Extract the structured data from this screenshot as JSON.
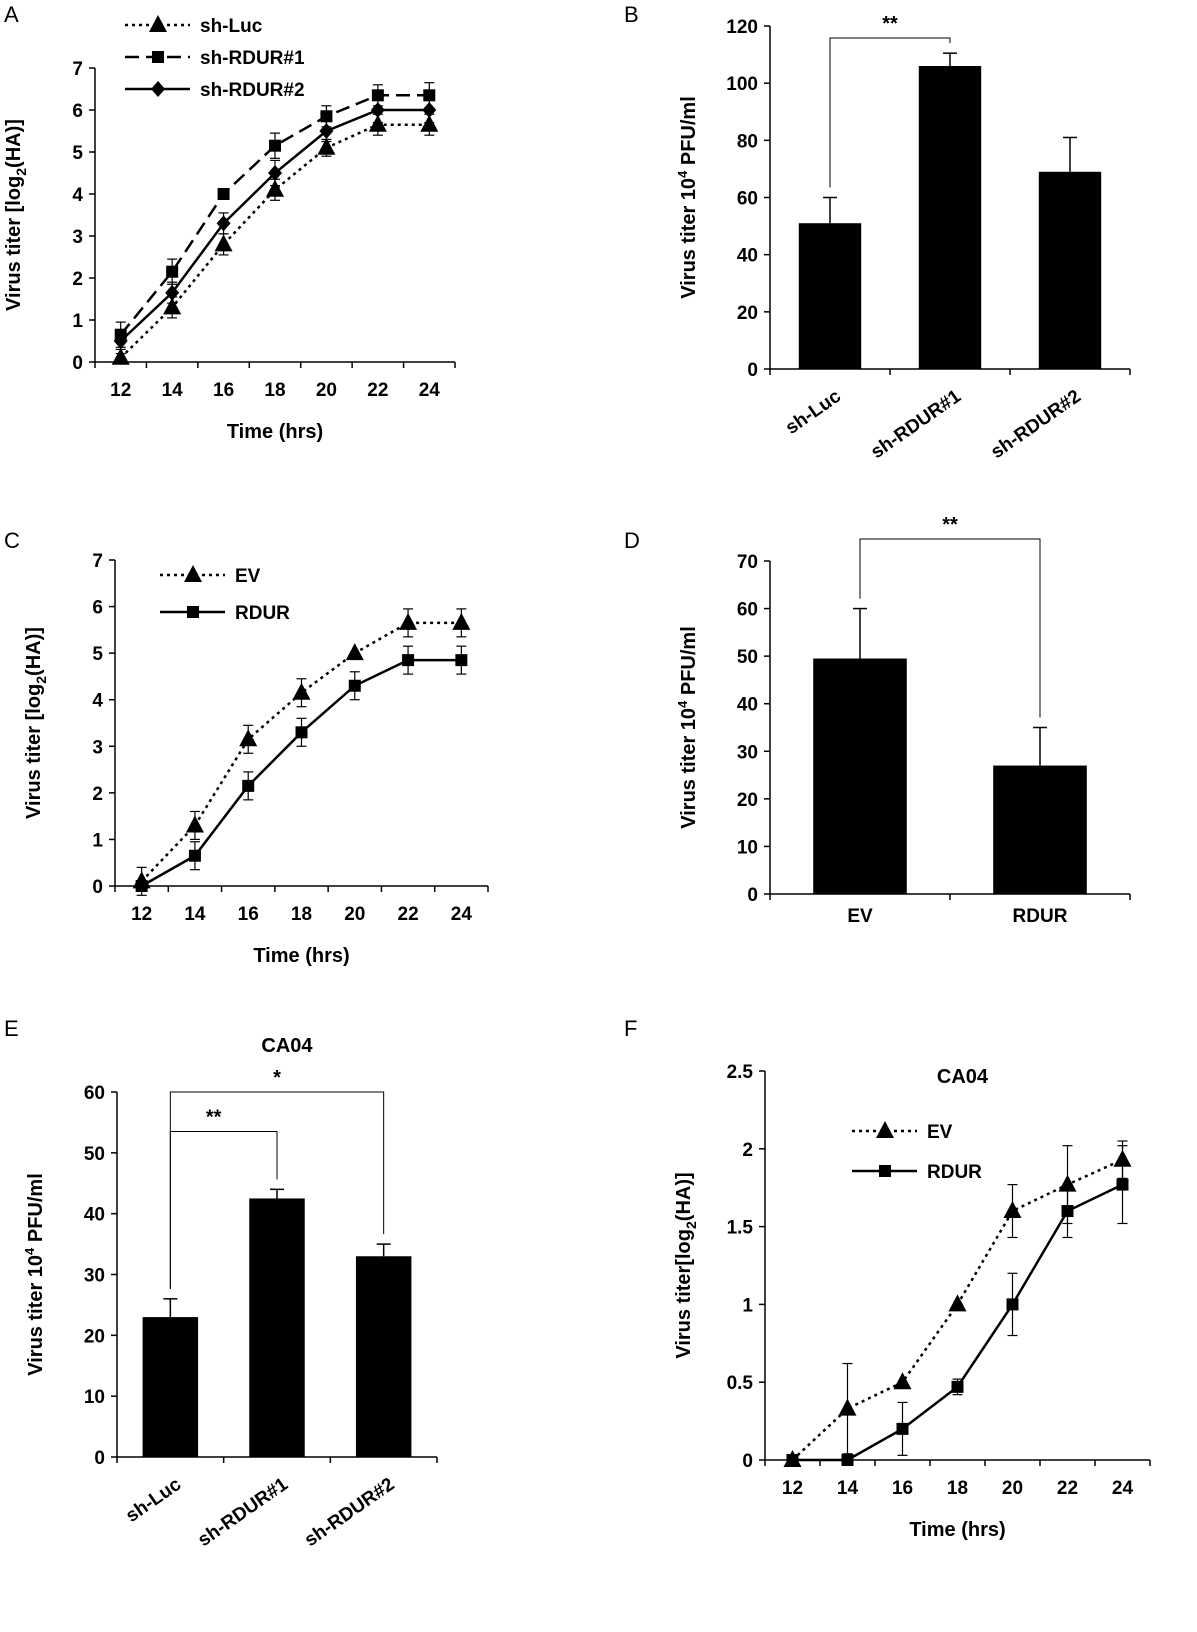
{
  "chart_data": [
    {
      "id": "A",
      "panel": "A",
      "type": "line",
      "title": "",
      "xlabel": "Time (hrs)",
      "ylabel": "Virus titer [log2(HA)]",
      "x": [
        12,
        14,
        16,
        18,
        20,
        22,
        24
      ],
      "xticks": [
        "12",
        "14",
        "16",
        "18",
        "20",
        "22",
        "24"
      ],
      "ylim": [
        0,
        7
      ],
      "yticks": [
        "0",
        "1",
        "2",
        "3",
        "4",
        "5",
        "6",
        "7"
      ],
      "legend_position": "top-left",
      "series": [
        {
          "name": "sh-Luc",
          "marker": "triangle",
          "dash": "dotted",
          "values": [
            0.1,
            1.3,
            2.8,
            4.1,
            5.1,
            5.65,
            5.65
          ],
          "errors": [
            0.1,
            0.25,
            0.25,
            0.25,
            0.2,
            0.25,
            0.25
          ]
        },
        {
          "name": "sh-RDUR#1",
          "marker": "square",
          "dash": "dashed",
          "values": [
            0.65,
            2.15,
            4.0,
            5.15,
            5.85,
            6.35,
            6.35
          ],
          "errors": [
            0.3,
            0.3,
            0.0,
            0.3,
            0.25,
            0.25,
            0.3
          ]
        },
        {
          "name": "sh-RDUR#2",
          "marker": "diamond",
          "dash": "solid",
          "values": [
            0.5,
            1.65,
            3.3,
            4.5,
            5.5,
            6.0,
            6.0
          ],
          "errors": [
            0.2,
            0.25,
            0.25,
            0.3,
            0.25,
            0.3,
            0.3
          ]
        }
      ]
    },
    {
      "id": "B",
      "panel": "B",
      "type": "bar",
      "title": "",
      "xlabel": "",
      "ylabel": "Virus titer 10^4 PFU/ml",
      "ylabel_main": "Virus titer 10",
      "ylabel_sup": "4",
      "ylabel_tail": " PFU/ml",
      "categories": [
        "sh-Luc",
        "sh-RDUR#1",
        "sh-RDUR#2"
      ],
      "values": [
        51,
        106,
        69
      ],
      "errors": [
        9,
        4.5,
        12
      ],
      "ylim": [
        0,
        120
      ],
      "yticks": [
        "0",
        "20",
        "40",
        "60",
        "80",
        "100",
        "120"
      ],
      "rotate_labels": true,
      "significance": [
        {
          "from": 0,
          "to": 1,
          "label": "**"
        }
      ]
    },
    {
      "id": "C",
      "panel": "C",
      "type": "line",
      "title": "",
      "xlabel": "Time (hrs)",
      "ylabel": "Virus titer [log2(HA)]",
      "x": [
        12,
        14,
        16,
        18,
        20,
        22,
        24
      ],
      "xticks": [
        "12",
        "14",
        "16",
        "18",
        "20",
        "22",
        "24"
      ],
      "ylim": [
        0,
        7
      ],
      "yticks": [
        "0",
        "1",
        "2",
        "3",
        "4",
        "5",
        "6",
        "7"
      ],
      "legend_position": "top-left",
      "series": [
        {
          "name": "EV",
          "marker": "triangle",
          "dash": "dotted",
          "values": [
            0.1,
            1.3,
            3.15,
            4.15,
            5.0,
            5.65,
            5.65
          ],
          "errors": [
            0.3,
            0.3,
            0.3,
            0.3,
            0.0,
            0.3,
            0.3
          ]
        },
        {
          "name": "RDUR",
          "marker": "square",
          "dash": "solid",
          "values": [
            0.0,
            0.65,
            2.15,
            3.3,
            4.3,
            4.85,
            4.85
          ],
          "errors": [
            0.0,
            0.3,
            0.3,
            0.3,
            0.3,
            0.3,
            0.3
          ]
        }
      ]
    },
    {
      "id": "D",
      "panel": "D",
      "type": "bar",
      "title": "",
      "xlabel": "",
      "ylabel": "Virus titer 10^4 PFU/ml",
      "ylabel_main": "Virus titer 10",
      "ylabel_sup": "4",
      "ylabel_tail": " PFU/ml",
      "categories": [
        "EV",
        "RDUR"
      ],
      "values": [
        49.5,
        27
      ],
      "errors": [
        10.5,
        8
      ],
      "ylim": [
        0,
        70
      ],
      "yticks": [
        "0",
        "10",
        "20",
        "30",
        "40",
        "50",
        "60",
        "70"
      ],
      "rotate_labels": false,
      "significance": [
        {
          "from": 0,
          "to": 1,
          "label": "**"
        }
      ]
    },
    {
      "id": "E",
      "panel": "E",
      "type": "bar",
      "title": "CA04",
      "xlabel": "",
      "ylabel": "Virus titer 10^4 PFU/ml",
      "ylabel_main": "Virus titer 10",
      "ylabel_sup": "4",
      "ylabel_tail": " PFU/ml",
      "categories": [
        "sh-Luc",
        "sh-RDUR#1",
        "sh-RDUR#2"
      ],
      "values": [
        23,
        42.5,
        33
      ],
      "errors": [
        3,
        1.5,
        2
      ],
      "ylim": [
        0,
        60
      ],
      "yticks": [
        "0",
        "10",
        "20",
        "30",
        "40",
        "50",
        "60"
      ],
      "rotate_labels": true,
      "significance": [
        {
          "from": 0,
          "to": 1,
          "label": "**"
        },
        {
          "from": 0,
          "to": 2,
          "label": "*"
        }
      ]
    },
    {
      "id": "F",
      "panel": "F",
      "type": "line",
      "title": "CA04",
      "xlabel": "Time (hrs)",
      "ylabel": "Virus titer[log2(HA)]",
      "x": [
        12,
        14,
        16,
        18,
        20,
        22,
        24
      ],
      "xticks": [
        "12",
        "14",
        "16",
        "18",
        "20",
        "22",
        "24"
      ],
      "ylim": [
        0,
        2.5
      ],
      "yticks": [
        "0",
        "0.5",
        "1",
        "1.5",
        "2",
        "2.5"
      ],
      "legend_position": "top-left",
      "series": [
        {
          "name": "EV",
          "marker": "triangle",
          "dash": "dotted",
          "values": [
            0.0,
            0.33,
            0.5,
            1.0,
            1.6,
            1.77,
            1.93
          ],
          "errors": [
            0.0,
            0.29,
            0.0,
            0.0,
            0.17,
            0.25,
            0.12
          ]
        },
        {
          "name": "RDUR",
          "marker": "square",
          "dash": "solid",
          "values": [
            0.0,
            0.0,
            0.2,
            0.47,
            1.0,
            1.6,
            1.77
          ],
          "errors": [
            0.0,
            0.0,
            0.17,
            0.05,
            0.2,
            0.17,
            0.25
          ]
        }
      ]
    }
  ]
}
